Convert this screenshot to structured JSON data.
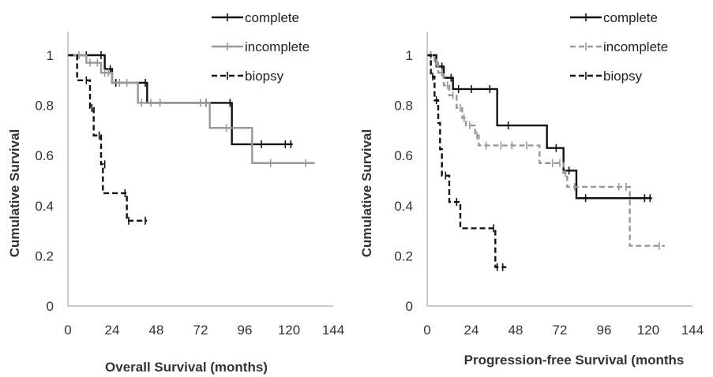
{
  "chart_data": [
    {
      "type": "line",
      "subtype": "kaplan-meier step",
      "xlabel": "Overall Survival (months)",
      "ylabel": "Cumulative Survival",
      "xlim": [
        0,
        144
      ],
      "ylim": [
        0,
        1
      ],
      "xticks": [
        "0",
        "24",
        "48",
        "72",
        "96",
        "120",
        "144"
      ],
      "yticks": [
        "0",
        "0.2",
        "0.4",
        "0.6",
        "0.8",
        "1"
      ],
      "grid": false,
      "legend_position": "top-right",
      "series": [
        {
          "name": "complete",
          "color": "#111111",
          "dash": "solid",
          "steps": [
            [
              0,
              1.0
            ],
            [
              20,
              0.945
            ],
            [
              24,
              0.89
            ],
            [
              43,
              0.81
            ],
            [
              89,
              0.645
            ],
            [
              122,
              0.645
            ]
          ],
          "censored": [
            [
              10,
              1.0
            ],
            [
              18,
              1.0
            ],
            [
              23,
              0.945
            ],
            [
              26,
              0.89
            ],
            [
              42,
              0.89
            ],
            [
              75,
              0.81
            ],
            [
              88,
              0.81
            ],
            [
              105,
              0.645
            ],
            [
              118,
              0.645
            ],
            [
              121,
              0.645
            ]
          ]
        },
        {
          "name": "incomplete",
          "color": "#999999",
          "dash": "solid",
          "steps": [
            [
              0,
              1.0
            ],
            [
              10,
              0.97
            ],
            [
              18,
              0.93
            ],
            [
              24,
              0.89
            ],
            [
              38,
              0.81
            ],
            [
              77,
              0.71
            ],
            [
              100,
              0.57
            ],
            [
              134,
              0.57
            ]
          ],
          "censored": [
            [
              6,
              1.0
            ],
            [
              12,
              0.97
            ],
            [
              16,
              0.97
            ],
            [
              20,
              0.93
            ],
            [
              22,
              0.93
            ],
            [
              28,
              0.89
            ],
            [
              32,
              0.89
            ],
            [
              40,
              0.81
            ],
            [
              45,
              0.81
            ],
            [
              50,
              0.81
            ],
            [
              72,
              0.81
            ],
            [
              75,
              0.81
            ],
            [
              86,
              0.71
            ],
            [
              110,
              0.57
            ],
            [
              129,
              0.57
            ]
          ]
        },
        {
          "name": "biopsy",
          "color": "#111111",
          "dash": "dashed",
          "steps": [
            [
              0,
              1.0
            ],
            [
              5,
              0.9
            ],
            [
              12,
              0.79
            ],
            [
              14,
              0.68
            ],
            [
              18,
              0.565
            ],
            [
              19,
              0.45
            ],
            [
              32,
              0.34
            ],
            [
              43,
              0.34
            ]
          ],
          "censored": [
            [
              10,
              0.9
            ],
            [
              13,
              0.79
            ],
            [
              17,
              0.68
            ],
            [
              20,
              0.565
            ],
            [
              31,
              0.45
            ],
            [
              33,
              0.34
            ],
            [
              42,
              0.34
            ]
          ]
        }
      ]
    },
    {
      "type": "line",
      "subtype": "kaplan-meier step",
      "xlabel": "Progression-free Survival (months",
      "ylabel": "Cumulative Survival",
      "xlim": [
        0,
        144
      ],
      "ylim": [
        0,
        1
      ],
      "xticks": [
        "0",
        "24",
        "48",
        "72",
        "96",
        "120",
        "144"
      ],
      "yticks": [
        "0",
        "0.2",
        "0.4",
        "0.6",
        "0.8",
        "1"
      ],
      "grid": false,
      "legend_position": "top-right",
      "series": [
        {
          "name": "complete",
          "color": "#111111",
          "dash": "solid",
          "steps": [
            [
              0,
              1.0
            ],
            [
              5,
              0.955
            ],
            [
              9,
              0.91
            ],
            [
              14,
              0.865
            ],
            [
              38,
              0.72
            ],
            [
              65,
              0.63
            ],
            [
              74,
              0.54
            ],
            [
              81,
              0.43
            ],
            [
              122,
              0.43
            ]
          ],
          "censored": [
            [
              2,
              1.0
            ],
            [
              8,
              0.955
            ],
            [
              13,
              0.91
            ],
            [
              17,
              0.865
            ],
            [
              24,
              0.865
            ],
            [
              34,
              0.865
            ],
            [
              44,
              0.72
            ],
            [
              70,
              0.63
            ],
            [
              77,
              0.54
            ],
            [
              86,
              0.43
            ],
            [
              118,
              0.43
            ],
            [
              121,
              0.43
            ]
          ]
        },
        {
          "name": "incomplete",
          "color": "#999999",
          "dash": "dashed",
          "steps": [
            [
              0,
              1.0
            ],
            [
              4,
              0.97
            ],
            [
              6,
              0.93
            ],
            [
              9,
              0.88
            ],
            [
              12,
              0.84
            ],
            [
              16,
              0.79
            ],
            [
              19,
              0.75
            ],
            [
              21,
              0.72
            ],
            [
              26,
              0.68
            ],
            [
              28,
              0.64
            ],
            [
              61,
              0.57
            ],
            [
              74,
              0.53
            ],
            [
              76,
              0.475
            ],
            [
              110,
              0.24
            ],
            [
              129,
              0.24
            ]
          ],
          "censored": [
            [
              2,
              1.0
            ],
            [
              5,
              0.97
            ],
            [
              8,
              0.93
            ],
            [
              11,
              0.88
            ],
            [
              14,
              0.84
            ],
            [
              18,
              0.79
            ],
            [
              20,
              0.75
            ],
            [
              23,
              0.72
            ],
            [
              27,
              0.68
            ],
            [
              32,
              0.64
            ],
            [
              40,
              0.64
            ],
            [
              46,
              0.64
            ],
            [
              54,
              0.64
            ],
            [
              68,
              0.57
            ],
            [
              72,
              0.57
            ],
            [
              75,
              0.53
            ],
            [
              80,
              0.475
            ],
            [
              104,
              0.475
            ],
            [
              108,
              0.475
            ],
            [
              126,
              0.24
            ]
          ]
        },
        {
          "name": "biopsy",
          "color": "#111111",
          "dash": "dashed",
          "steps": [
            [
              0,
              1.0
            ],
            [
              2,
              0.915
            ],
            [
              4,
              0.82
            ],
            [
              6,
              0.73
            ],
            [
              7,
              0.625
            ],
            [
              8,
              0.52
            ],
            [
              12,
              0.415
            ],
            [
              18,
              0.31
            ],
            [
              37,
              0.155
            ],
            [
              43,
              0.155
            ]
          ],
          "censored": [
            [
              3,
              0.915
            ],
            [
              5,
              0.82
            ],
            [
              10,
              0.52
            ],
            [
              16,
              0.415
            ],
            [
              36,
              0.31
            ],
            [
              38,
              0.155
            ],
            [
              41,
              0.155
            ]
          ]
        }
      ]
    }
  ]
}
